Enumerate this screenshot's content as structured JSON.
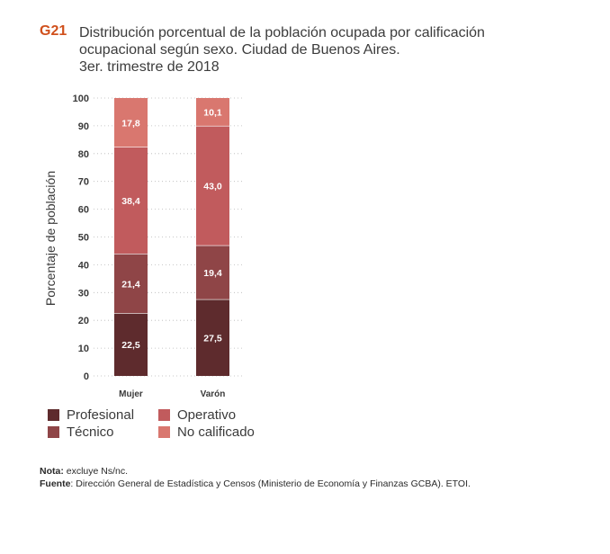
{
  "figure": {
    "code": "G21",
    "title_lines": [
      "Distribución porcentual de la población ocupada por calificación",
      "ocupacional según sexo. Ciudad de Buenos Aires.",
      "3er. trimestre de 2018"
    ]
  },
  "chart_data": {
    "type": "bar",
    "stacked": true,
    "title": "Distribución porcentual de la población ocupada por calificación ocupacional según sexo. Ciudad de Buenos Aires. 3er. trimestre de 2018",
    "categories": [
      "Mujer",
      "Varón"
    ],
    "series": [
      {
        "name": "Profesional",
        "values": [
          22.5,
          27.5
        ],
        "labels": [
          "22,5",
          "27,5"
        ],
        "color": "#5e2b2d"
      },
      {
        "name": "Técnico",
        "values": [
          21.4,
          19.4
        ],
        "labels": [
          "21,4",
          "19,4"
        ],
        "color": "#8f4547"
      },
      {
        "name": "Operativo",
        "values": [
          38.4,
          43.0
        ],
        "labels": [
          "38,4",
          "43,0"
        ],
        "color": "#c15b5d"
      },
      {
        "name": "No calificado",
        "values": [
          17.8,
          10.1
        ],
        "labels": [
          "17,8",
          "10,1"
        ],
        "color": "#d9776f"
      }
    ],
    "xlabel": "",
    "ylabel": "Porcentaje de población",
    "ylim": [
      0,
      100
    ],
    "yticks": [
      0,
      10,
      20,
      30,
      40,
      50,
      60,
      70,
      80,
      90,
      100
    ],
    "grid": true,
    "legend_position": "bottom-left"
  },
  "notes": {
    "nota_label": "Nota:",
    "nota_text": " excluye Ns/nc.",
    "fuente_label": "Fuente",
    "fuente_text": ": Dirección General de Estadística y Censos (Ministerio de Economía y Finanzas GCBA). ETOI."
  }
}
